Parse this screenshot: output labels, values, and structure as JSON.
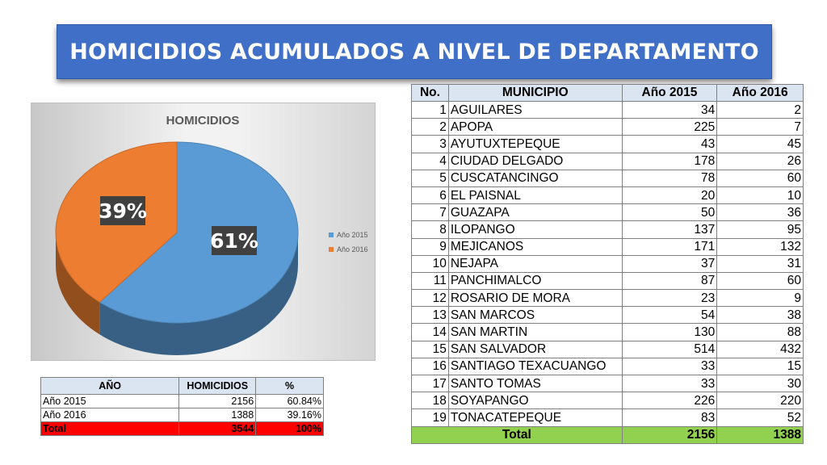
{
  "title": "HOMICIDIOS ACUMULADOS A NIVEL DE DEPARTAMENTO",
  "colors": {
    "title_bg": "#3f6fc6",
    "series_2015": "#5b9bd5",
    "series_2016": "#ed7d31",
    "header_bg": "#dbe5f1",
    "total_green": "#92d050",
    "total_red": "#ff0000"
  },
  "chart_data": {
    "type": "pie",
    "title": "HOMICIDIOS",
    "categories": [
      "Año 2015",
      "Año 2016"
    ],
    "values": [
      61,
      39
    ],
    "labels": [
      "61%",
      "39%"
    ],
    "legend_position": "right",
    "style": "3d"
  },
  "municipios": {
    "headers": [
      "No.",
      "MUNICIPIO",
      "Año 2015",
      "Año 2016"
    ],
    "rows": [
      [
        "1",
        "AGUILARES",
        "34",
        "2"
      ],
      [
        "2",
        "APOPA",
        "225",
        "7"
      ],
      [
        "3",
        "AYUTUXTEPEQUE",
        "43",
        "45"
      ],
      [
        "4",
        "CIUDAD DELGADO",
        "178",
        "26"
      ],
      [
        "5",
        "CUSCATANCINGO",
        "78",
        "60"
      ],
      [
        "6",
        "EL PAISNAL",
        "20",
        "10"
      ],
      [
        "7",
        "GUAZAPA",
        "50",
        "36"
      ],
      [
        "8",
        "ILOPANGO",
        "137",
        "95"
      ],
      [
        "9",
        "MEJICANOS",
        "171",
        "132"
      ],
      [
        "10",
        "NEJAPA",
        "37",
        "31"
      ],
      [
        "11",
        "PANCHIMALCO",
        "87",
        "60"
      ],
      [
        "12",
        "ROSARIO DE MORA",
        "23",
        "9"
      ],
      [
        "13",
        "SAN MARCOS",
        "54",
        "38"
      ],
      [
        "14",
        "SAN MARTIN",
        "130",
        "88"
      ],
      [
        "15",
        "SAN SALVADOR",
        "514",
        "432"
      ],
      [
        "16",
        "SANTIAGO TEXACUANGO",
        "33",
        "15"
      ],
      [
        "17",
        "SANTO TOMAS",
        "33",
        "30"
      ],
      [
        "18",
        "SOYAPANGO",
        "226",
        "220"
      ],
      [
        "19",
        "TONACATEPEQUE",
        "83",
        "52"
      ]
    ],
    "total": {
      "label": "Total",
      "y2015": "2156",
      "y2016": "1388"
    }
  },
  "summary": {
    "headers": [
      "AÑO",
      "HOMICIDIOS",
      "%"
    ],
    "rows": [
      [
        "Año 2015",
        "2156",
        "60.84%"
      ],
      [
        "Año 2016",
        "1388",
        "39.16%"
      ]
    ],
    "total": [
      "Total",
      "3544",
      "100%"
    ]
  }
}
